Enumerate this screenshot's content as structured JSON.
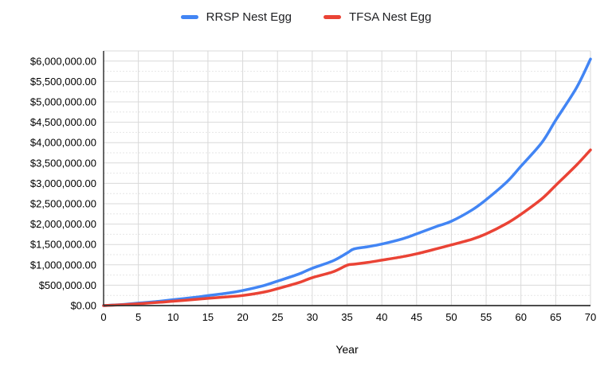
{
  "legend": {
    "items": [
      {
        "label": "RRSP Nest Egg",
        "color": "#4285f4"
      },
      {
        "label": "TFSA Nest Egg",
        "color": "#ea4335"
      }
    ]
  },
  "chart_data": {
    "type": "line",
    "title": "",
    "xlabel": "Year",
    "ylabel": "",
    "axis_range": {
      "x": [
        0,
        70
      ],
      "y": [
        0,
        6250000
      ]
    },
    "grid": {
      "major_color": "#d9d9d9",
      "minor_color": "#e6e6e6",
      "axis_color": "#333333",
      "minor_step": 250000,
      "major_step": 500000
    },
    "x_ticks": [
      0,
      5,
      10,
      15,
      20,
      25,
      30,
      35,
      40,
      45,
      50,
      55,
      60,
      65,
      70
    ],
    "x_tick_labels": [
      "0",
      "5",
      "10",
      "15",
      "20",
      "25",
      "30",
      "35",
      "40",
      "45",
      "50",
      "55",
      "60",
      "65",
      "70"
    ],
    "y_tick_values": [
      0,
      500000,
      1000000,
      1500000,
      2000000,
      2500000,
      3000000,
      3500000,
      4000000,
      4500000,
      5000000,
      5500000,
      6000000
    ],
    "y_tick_labels": [
      "$0.00",
      "$500,000.00",
      "$1,000,000.00",
      "$1,500,000.00",
      "$2,000,000.00",
      "$2,500,000.00",
      "$3,000,000.00",
      "$3,500,000.00",
      "$4,000,000.00",
      "$4,500,000.00",
      "$5,000,000.00",
      "$5,500,000.00",
      "$6,000,000.00"
    ],
    "series": [
      {
        "name": "RRSP Nest Egg",
        "color": "#4285f4",
        "points": [
          [
            0,
            0
          ],
          [
            3,
            30000
          ],
          [
            5,
            60000
          ],
          [
            8,
            105000
          ],
          [
            10,
            145000
          ],
          [
            13,
            200000
          ],
          [
            15,
            245000
          ],
          [
            18,
            310000
          ],
          [
            20,
            370000
          ],
          [
            23,
            490000
          ],
          [
            25,
            600000
          ],
          [
            28,
            770000
          ],
          [
            30,
            915000
          ],
          [
            33,
            1100000
          ],
          [
            35,
            1290000
          ],
          [
            36,
            1390000
          ],
          [
            38,
            1445000
          ],
          [
            40,
            1510000
          ],
          [
            43,
            1640000
          ],
          [
            45,
            1760000
          ],
          [
            48,
            1950000
          ],
          [
            50,
            2070000
          ],
          [
            53,
            2350000
          ],
          [
            55,
            2600000
          ],
          [
            58,
            3040000
          ],
          [
            60,
            3420000
          ],
          [
            63,
            4000000
          ],
          [
            65,
            4550000
          ],
          [
            68,
            5350000
          ],
          [
            70,
            6050000
          ]
        ]
      },
      {
        "name": "TFSA Nest Egg",
        "color": "#ea4335",
        "points": [
          [
            0,
            0
          ],
          [
            3,
            22000
          ],
          [
            5,
            45000
          ],
          [
            8,
            80000
          ],
          [
            10,
            108000
          ],
          [
            13,
            148000
          ],
          [
            15,
            178000
          ],
          [
            18,
            218000
          ],
          [
            20,
            248000
          ],
          [
            23,
            330000
          ],
          [
            25,
            415000
          ],
          [
            28,
            560000
          ],
          [
            30,
            685000
          ],
          [
            33,
            830000
          ],
          [
            35,
            990000
          ],
          [
            36,
            1015000
          ],
          [
            38,
            1060000
          ],
          [
            40,
            1115000
          ],
          [
            43,
            1200000
          ],
          [
            45,
            1270000
          ],
          [
            48,
            1400000
          ],
          [
            50,
            1490000
          ],
          [
            53,
            1630000
          ],
          [
            55,
            1760000
          ],
          [
            58,
            2020000
          ],
          [
            60,
            2240000
          ],
          [
            63,
            2620000
          ],
          [
            65,
            2950000
          ],
          [
            68,
            3450000
          ],
          [
            70,
            3820000
          ]
        ]
      }
    ]
  }
}
